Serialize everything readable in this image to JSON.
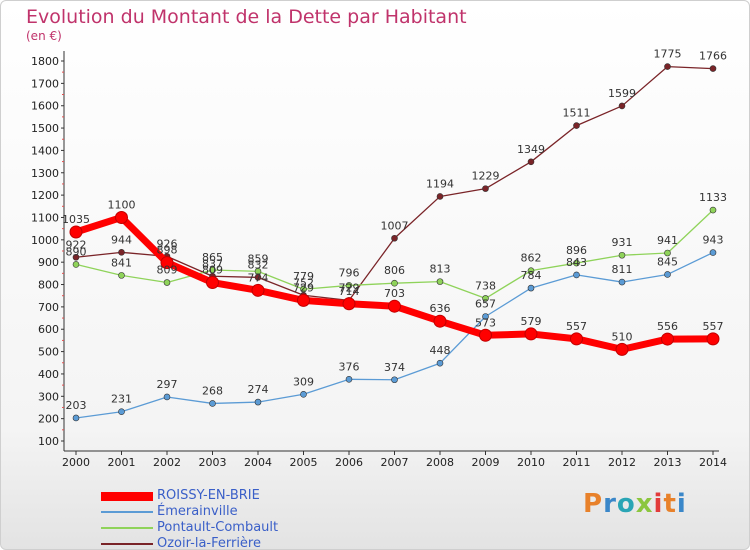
{
  "title": "Evolution du Montant de la Dette par Habitant",
  "subtitle": "(en €)",
  "logo": {
    "text": "Proxiti",
    "letter_colors": [
      "#e8812a",
      "#3a87c9",
      "#2aa5b5",
      "#8cc63f",
      "#e23b3b",
      "#e8812a",
      "#3a87c9"
    ]
  },
  "chart_data": {
    "type": "line",
    "x": [
      "2000",
      "2001",
      "2002",
      "2003",
      "2004",
      "2005",
      "2006",
      "2007",
      "2008",
      "2009",
      "2010",
      "2011",
      "2012",
      "2013",
      "2014"
    ],
    "ylim": [
      100,
      1800
    ],
    "yticks": [
      "100",
      "200",
      "300",
      "400",
      "500",
      "600",
      "700",
      "800",
      "900",
      "1000",
      "1100",
      "1200",
      "1300",
      "1400",
      "1500",
      "1600",
      "1700",
      "1800"
    ],
    "grid": false,
    "legend_position": "bottom-left",
    "series": [
      {
        "name": "ROISSY-EN-BRIE",
        "color": "#ff0000",
        "values": [
          1035,
          1100,
          898,
          809,
          774,
          729,
          714,
          703,
          636,
          573,
          579,
          557,
          510,
          556,
          557
        ],
        "labels": [
          "1035",
          "1100",
          "898",
          "809",
          "774",
          "729",
          "714",
          "703",
          "636",
          "573",
          "579",
          "557",
          "510",
          "556",
          "557"
        ]
      },
      {
        "name": "Émerainville",
        "color": "#5b9bd5",
        "values": [
          203,
          231,
          297,
          268,
          274,
          309,
          376,
          374,
          448,
          657,
          784,
          843,
          811,
          845,
          943
        ],
        "labels": [
          "203",
          "231",
          "297",
          "268",
          "274",
          "309",
          "376",
          "374",
          "448",
          "657",
          "784",
          "843",
          "811",
          "845",
          "943"
        ]
      },
      {
        "name": "Pontault-Combault",
        "color": "#8fd35a",
        "values": [
          890,
          841,
          809,
          865,
          859,
          779,
          796,
          806,
          813,
          738,
          862,
          896,
          931,
          941,
          1133
        ],
        "labels": [
          "890",
          "841",
          "809",
          "865",
          "859",
          "779",
          "796",
          "806",
          "813",
          "738",
          "862",
          "896",
          "931",
          "941",
          "1133"
        ]
      },
      {
        "name": "Ozoir-la-Ferrière",
        "color": "#7a2428",
        "values": [
          922,
          944,
          926,
          837,
          832,
          752,
          729,
          1007,
          1194,
          1229,
          1349,
          1511,
          1599,
          1775,
          1766
        ],
        "labels": [
          "922",
          "944",
          "926",
          "837",
          "832",
          "752",
          "729",
          "1007",
          "1194",
          "1229",
          "1349",
          "1511",
          "1599",
          "1775",
          "1766"
        ]
      }
    ]
  }
}
